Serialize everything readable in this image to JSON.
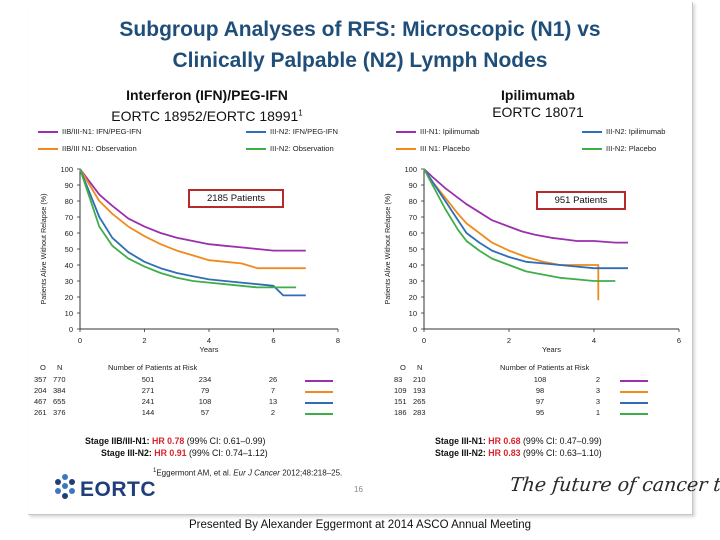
{
  "slide": {
    "title_line1": "Subgroup Analyses of RFS: Microscopic (N1) vs",
    "title_line2": "Clinically Palpable (N2) Lymph Nodes"
  },
  "colors": {
    "title": "#1f4e79",
    "hr_value": "#d9232e",
    "box_border": "#b52a2a"
  },
  "panels": [
    {
      "heading": "Interferon (IFN)/PEG-IFN",
      "trial": "EORTC 18952/EORTC 18991",
      "trial_ref": "1",
      "patients_box": "2185 Patients",
      "legend": [
        {
          "label": "IIB/III-N1: IFN/PEG-IFN",
          "color": "#9b2fae"
        },
        {
          "label": "IIB/III N1: Observation",
          "color": "#f08a1c"
        },
        {
          "label": "III-N2: IFN/PEG-IFN",
          "color": "#2f6eb5"
        },
        {
          "label": "III-N2: Observation",
          "color": "#3fae49"
        }
      ],
      "risk_header": {
        "o": "O",
        "n": "N",
        "label": "Number of Patients at Risk"
      },
      "risk_rows": [
        {
          "o": "357",
          "n": "770",
          "v": [
            "501",
            "234",
            "26"
          ],
          "color": "#9b2fae"
        },
        {
          "o": "204",
          "n": "384",
          "v": [
            "271",
            "79",
            "7"
          ],
          "color": "#f08a1c"
        },
        {
          "o": "467",
          "n": "655",
          "v": [
            "241",
            "108",
            "13"
          ],
          "color": "#2f6eb5"
        },
        {
          "o": "261",
          "n": "376",
          "v": [
            "144",
            "57",
            "2"
          ],
          "color": "#3fae49"
        }
      ],
      "hr": [
        {
          "label": "Stage IIB/III-N1:",
          "hr": "HR 0.78",
          "ci": "(99% CI: 0.61–0.99)"
        },
        {
          "label": "Stage III-N2:",
          "hr": "HR 0.91",
          "ci": "(99% CI: 0.74–1.12)"
        }
      ]
    },
    {
      "heading": "Ipilimumab",
      "trial": "EORTC 18071",
      "patients_box": "951 Patients",
      "legend": [
        {
          "label": "III-N1: Ipilimumab",
          "color": "#9b2fae"
        },
        {
          "label": "III N1: Placebo",
          "color": "#f08a1c"
        },
        {
          "label": "III-N2: Ipilimumab",
          "color": "#2f6eb5"
        },
        {
          "label": "III-N2: Placebo",
          "color": "#3fae49"
        }
      ],
      "risk_header": {
        "o": "O",
        "n": "N",
        "label": "Number of Patients at Risk"
      },
      "risk_rows": [
        {
          "o": "83",
          "n": "210",
          "v": [
            "108",
            "2"
          ],
          "color": "#9b2fae"
        },
        {
          "o": "109",
          "n": "193",
          "v": [
            "98",
            "3"
          ],
          "color": "#f08a1c"
        },
        {
          "o": "151",
          "n": "265",
          "v": [
            "97",
            "3"
          ],
          "color": "#2f6eb5"
        },
        {
          "o": "186",
          "n": "283",
          "v": [
            "95",
            "1"
          ],
          "color": "#3fae49"
        }
      ],
      "hr": [
        {
          "label": "Stage III-N1:",
          "hr": "HR 0.68",
          "ci": "(99% CI: 0.47–0.99)"
        },
        {
          "label": "Stage III-N2:",
          "hr": "HR 0.83",
          "ci": "(99% CI: 0.63–1.10)"
        }
      ]
    }
  ],
  "chart_data": [
    {
      "type": "line",
      "ylabel": "Patients Alive Without Relapse (%)",
      "xlabel": "Years",
      "ylim": [
        0,
        100
      ],
      "xlim": [
        0,
        8
      ],
      "xticks": [
        "0",
        "2",
        "4",
        "6",
        "8"
      ],
      "yticks": [
        "0",
        "10",
        "20",
        "30",
        "40",
        "50",
        "60",
        "70",
        "80",
        "90",
        "100"
      ],
      "series": [
        {
          "name": "IIB/III-N1: IFN/PEG-IFN",
          "color": "#9b2fae",
          "points": [
            [
              0,
              100
            ],
            [
              0.3,
              92
            ],
            [
              0.6,
              84
            ],
            [
              1,
              77
            ],
            [
              1.5,
              69
            ],
            [
              2,
              64
            ],
            [
              2.5,
              60
            ],
            [
              3,
              57
            ],
            [
              3.5,
              55
            ],
            [
              4,
              53
            ],
            [
              4.5,
              52
            ],
            [
              5,
              51
            ],
            [
              5.5,
              50
            ],
            [
              6,
              49
            ],
            [
              7,
              49
            ]
          ]
        },
        {
          "name": "IIB/III N1: Observation",
          "color": "#f08a1c",
          "points": [
            [
              0,
              100
            ],
            [
              0.3,
              90
            ],
            [
              0.6,
              80
            ],
            [
              1,
              72
            ],
            [
              1.5,
              64
            ],
            [
              2,
              58
            ],
            [
              2.5,
              53
            ],
            [
              3,
              49
            ],
            [
              3.5,
              46
            ],
            [
              4,
              43
            ],
            [
              4.5,
              42
            ],
            [
              5,
              41
            ],
            [
              5.5,
              38
            ],
            [
              7,
              38
            ]
          ]
        },
        {
          "name": "III-N2: IFN/PEG-IFN",
          "color": "#2f6eb5",
          "points": [
            [
              0,
              100
            ],
            [
              0.3,
              85
            ],
            [
              0.6,
              70
            ],
            [
              1,
              57
            ],
            [
              1.5,
              48
            ],
            [
              2,
              42
            ],
            [
              2.5,
              38
            ],
            [
              3,
              35
            ],
            [
              3.5,
              33
            ],
            [
              4,
              31
            ],
            [
              4.5,
              30
            ],
            [
              5,
              29
            ],
            [
              5.5,
              28
            ],
            [
              6,
              27
            ],
            [
              6.3,
              21
            ],
            [
              7,
              21
            ]
          ]
        },
        {
          "name": "III-N2: Observation",
          "color": "#3fae49",
          "points": [
            [
              0,
              100
            ],
            [
              0.3,
              82
            ],
            [
              0.6,
              64
            ],
            [
              1,
              52
            ],
            [
              1.5,
              44
            ],
            [
              2,
              39
            ],
            [
              2.5,
              35
            ],
            [
              3,
              32
            ],
            [
              3.5,
              30
            ],
            [
              4,
              29
            ],
            [
              4.5,
              28
            ],
            [
              5,
              27
            ],
            [
              5.5,
              26
            ],
            [
              6.7,
              26
            ]
          ]
        }
      ]
    },
    {
      "type": "line",
      "ylabel": "Patients Alive Without Relapse (%)",
      "xlabel": "Years",
      "ylim": [
        0,
        100
      ],
      "xlim": [
        0,
        6
      ],
      "xticks": [
        "0",
        "2",
        "4",
        "6"
      ],
      "yticks": [
        "0",
        "10",
        "20",
        "30",
        "40",
        "50",
        "60",
        "70",
        "80",
        "90",
        "100"
      ],
      "series": [
        {
          "name": "III-N1: Ipilimumab",
          "color": "#9b2fae",
          "points": [
            [
              0,
              100
            ],
            [
              0.2,
              95
            ],
            [
              0.5,
              88
            ],
            [
              0.8,
              82
            ],
            [
              1,
              78
            ],
            [
              1.3,
              73
            ],
            [
              1.6,
              68
            ],
            [
              2,
              64
            ],
            [
              2.3,
              61
            ],
            [
              2.6,
              59
            ],
            [
              3,
              57
            ],
            [
              3.3,
              56
            ],
            [
              3.6,
              55
            ],
            [
              4,
              55
            ],
            [
              4.5,
              54
            ],
            [
              4.8,
              54
            ]
          ]
        },
        {
          "name": "III N1: Placebo",
          "color": "#f08a1c",
          "points": [
            [
              0,
              100
            ],
            [
              0.2,
              92
            ],
            [
              0.5,
              82
            ],
            [
              0.8,
              72
            ],
            [
              1,
              66
            ],
            [
              1.3,
              60
            ],
            [
              1.6,
              54
            ],
            [
              2,
              49
            ],
            [
              2.4,
              45
            ],
            [
              2.8,
              42
            ],
            [
              3.2,
              40
            ],
            [
              3.6,
              40
            ],
            [
              4.1,
              40
            ],
            [
              4.1,
              18
            ]
          ]
        },
        {
          "name": "III-N2: Ipilimumab",
          "color": "#2f6eb5",
          "points": [
            [
              0,
              100
            ],
            [
              0.2,
              92
            ],
            [
              0.5,
              80
            ],
            [
              0.8,
              68
            ],
            [
              1,
              60
            ],
            [
              1.3,
              54
            ],
            [
              1.6,
              49
            ],
            [
              2,
              45
            ],
            [
              2.4,
              42
            ],
            [
              2.8,
              41
            ],
            [
              3.2,
              40
            ],
            [
              3.6,
              39
            ],
            [
              4,
              38
            ],
            [
              4.8,
              38
            ]
          ]
        },
        {
          "name": "III-N2: Placebo",
          "color": "#3fae49",
          "points": [
            [
              0,
              100
            ],
            [
              0.2,
              90
            ],
            [
              0.5,
              75
            ],
            [
              0.8,
              62
            ],
            [
              1,
              55
            ],
            [
              1.3,
              49
            ],
            [
              1.6,
              44
            ],
            [
              2,
              40
            ],
            [
              2.4,
              36
            ],
            [
              2.8,
              34
            ],
            [
              3.2,
              32
            ],
            [
              3.6,
              31
            ],
            [
              4,
              30
            ],
            [
              4.5,
              30
            ]
          ]
        }
      ]
    }
  ],
  "footer": {
    "ref_mark": "1",
    "ref_authors": "Eggermont AM, et al.",
    "ref_journal": "Eur J Cancer",
    "ref_details": "2012;48:218–25.",
    "page_number": "16",
    "logo_text": "EORTC",
    "tagline": "The future of cancer therapy",
    "caption": "Presented By Alexander Eggermont at 2014 ASCO Annual Meeting"
  }
}
